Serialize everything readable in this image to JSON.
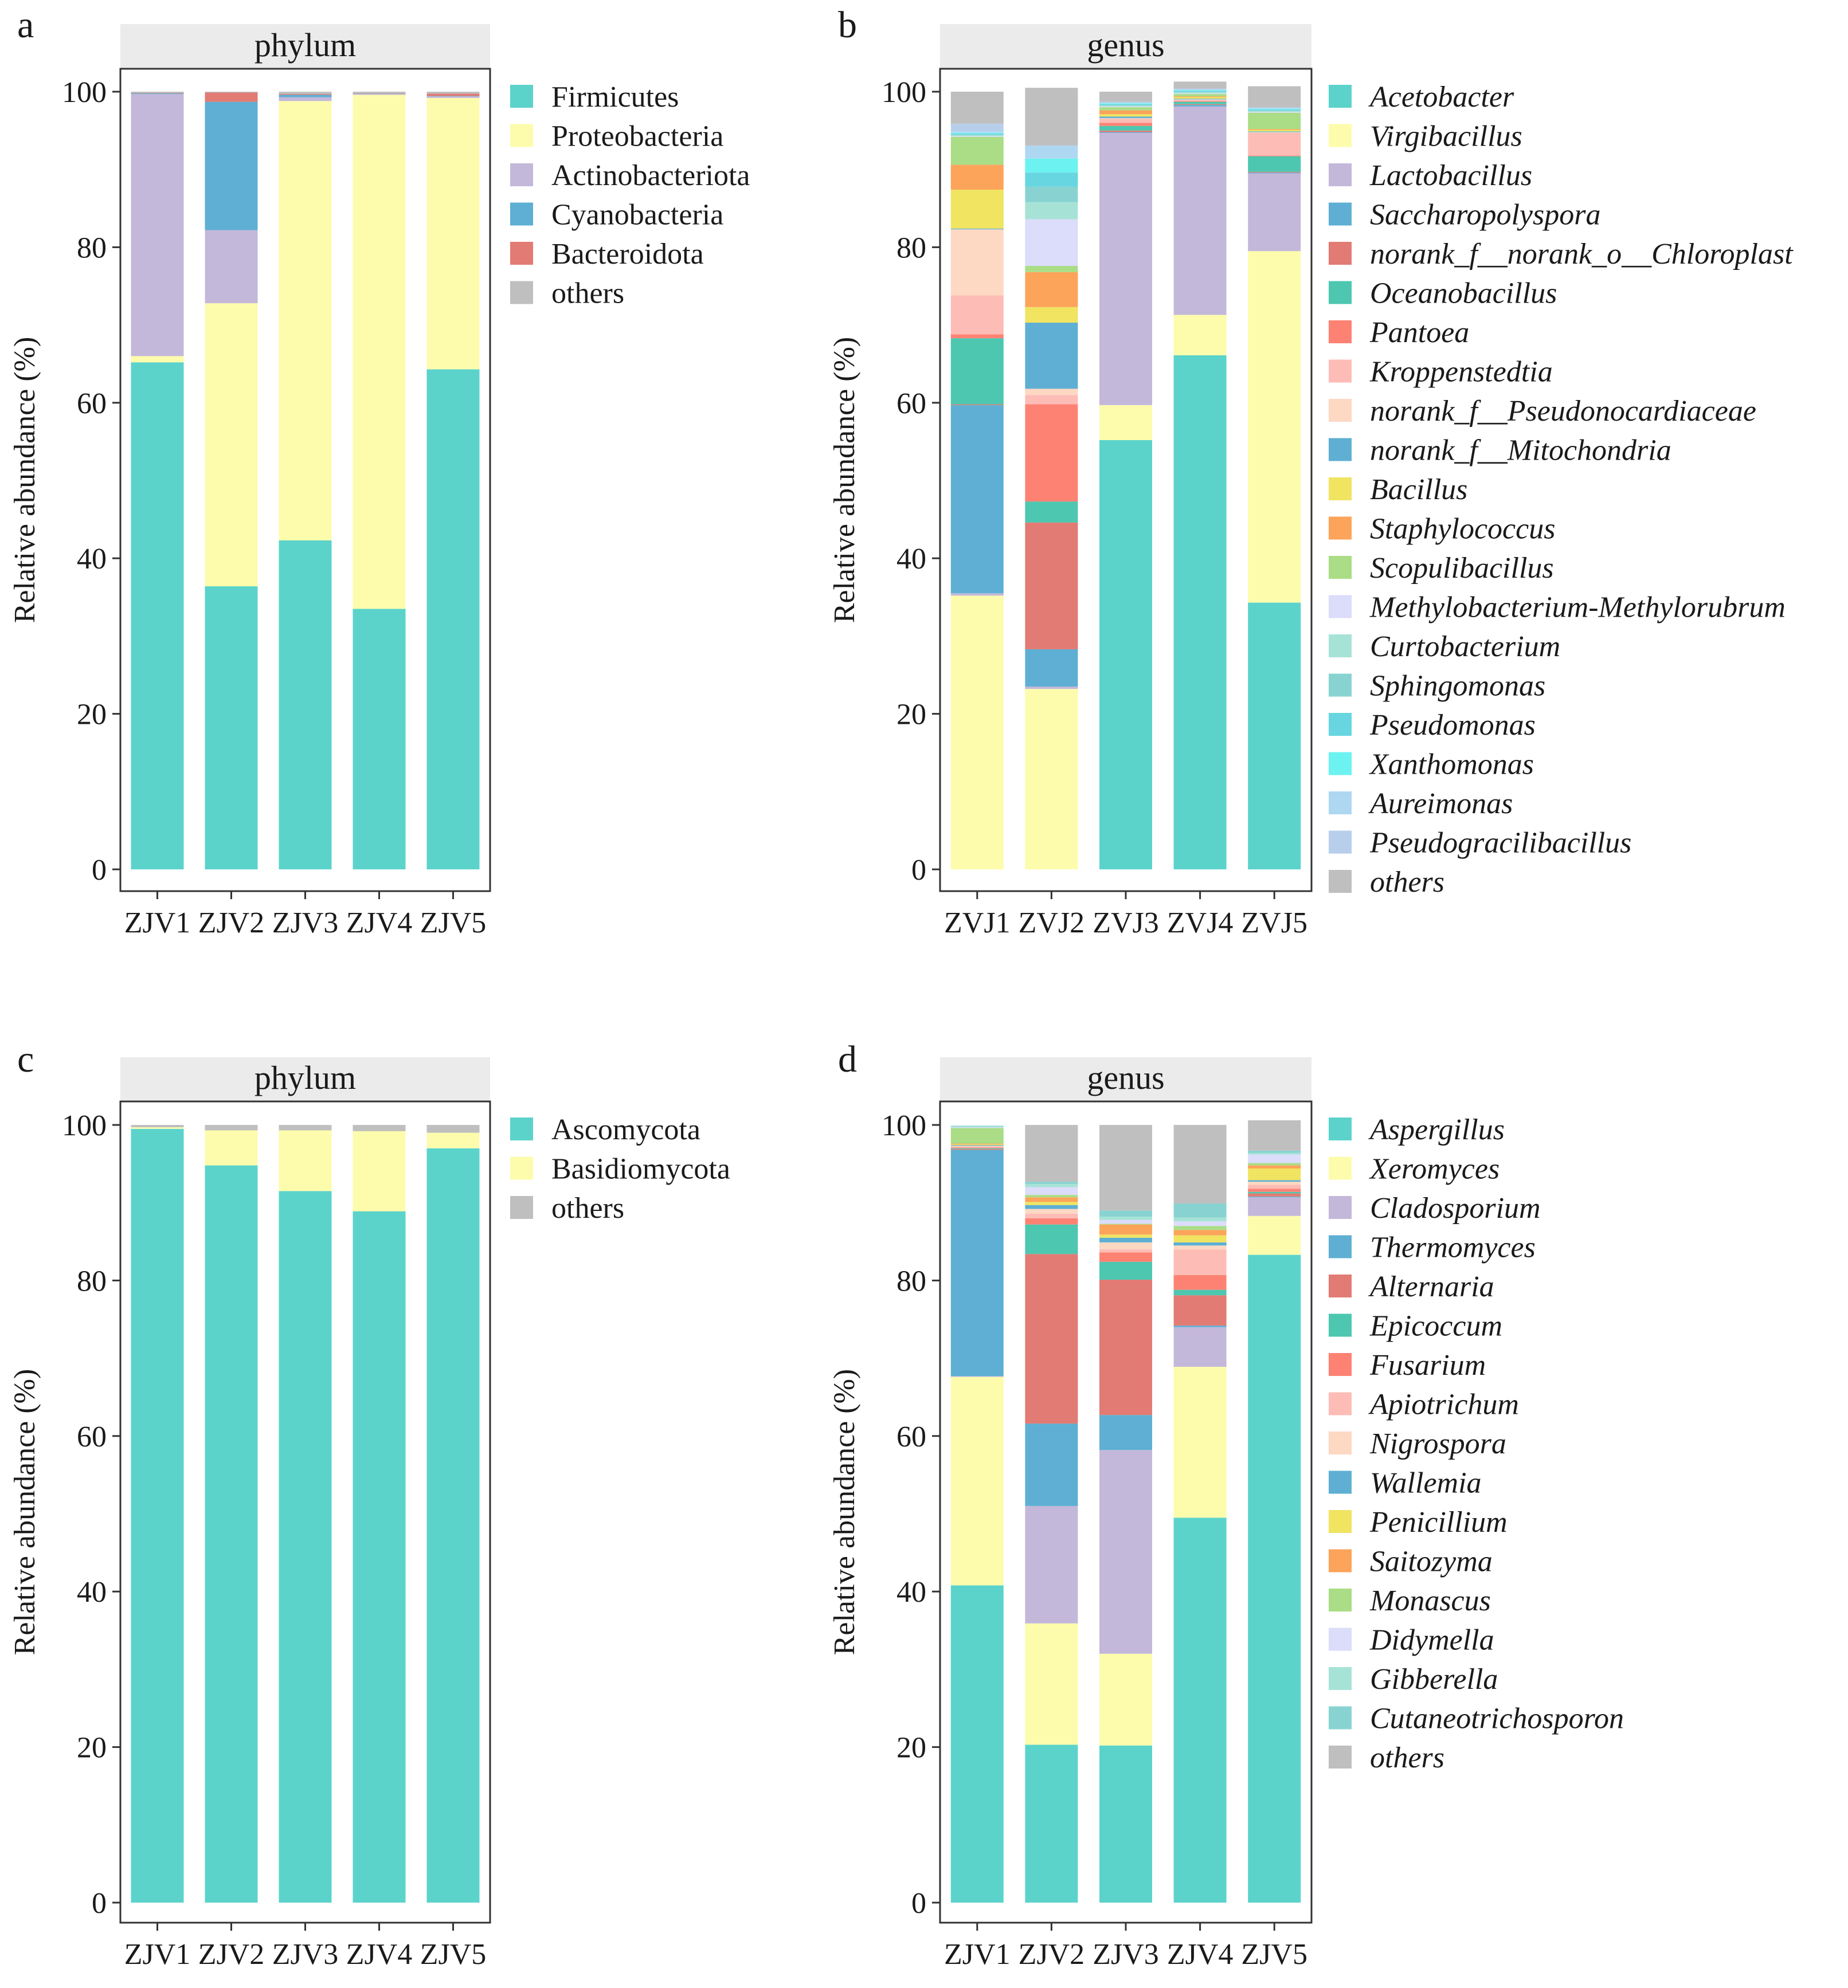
{
  "chart_data": [
    {
      "panel": "a",
      "type": "bar",
      "stacked": true,
      "title": "phylum",
      "xlabel": "",
      "ylabel": "Relative abundance (%)",
      "ylim": [
        0,
        100
      ],
      "yticks": [
        0,
        20,
        40,
        60,
        80,
        100
      ],
      "categories": [
        "ZJV1",
        "ZJV2",
        "ZJV3",
        "ZJV4",
        "ZJV5"
      ],
      "legend_italic": false,
      "legend_position": "right",
      "series": [
        {
          "name": "Firmicutes",
          "color": "#5bd3cb",
          "values": [
            65.2,
            36.4,
            42.3,
            33.5,
            64.3
          ]
        },
        {
          "name": "Proteobacteria",
          "color": "#fdfcac",
          "values": [
            0.8,
            36.4,
            56.5,
            66.1,
            34.9
          ]
        },
        {
          "name": "Actinobacteriota",
          "color": "#c3b8da",
          "values": [
            33.7,
            9.4,
            0.5,
            0.1,
            0.2
          ]
        },
        {
          "name": "Cyanobacteria",
          "color": "#5eafd3",
          "values": [
            0.1,
            16.5,
            0.3,
            0.05,
            0.05
          ]
        },
        {
          "name": "Bacteroidota",
          "color": "#e27b73",
          "values": [
            0.05,
            1.2,
            0.1,
            0.05,
            0.3
          ]
        },
        {
          "name": "others",
          "color": "#bfbfbf",
          "values": [
            0.15,
            0.1,
            0.3,
            0.2,
            0.25
          ]
        }
      ]
    },
    {
      "panel": "b",
      "type": "bar",
      "stacked": true,
      "title": "genus",
      "xlabel": "",
      "ylabel": "Relative abundance (%)",
      "ylim": [
        0,
        100
      ],
      "yticks": [
        0,
        20,
        40,
        60,
        80,
        100
      ],
      "categories": [
        "ZVJ1",
        "ZVJ2",
        "ZVJ3",
        "ZVJ4",
        "ZVJ5"
      ],
      "legend_italic": true,
      "legend_position": "right",
      "series": [
        {
          "name": "Acetobacter",
          "color": "#5bd3cb",
          "values": [
            0,
            0,
            55.2,
            66.1,
            34.3
          ]
        },
        {
          "name": "Virgibacillus",
          "color": "#fdfcac",
          "values": [
            35.2,
            23.2,
            4.5,
            5.2,
            45.2
          ]
        },
        {
          "name": "Lactobacillus",
          "color": "#c3b8da",
          "values": [
            0.3,
            0.3,
            35.0,
            26.8,
            10.0
          ]
        },
        {
          "name": "Saccharopolyspora",
          "color": "#5eafd3",
          "values": [
            24.2,
            4.8,
            0.1,
            0.2,
            0.1
          ]
        },
        {
          "name": "norank_f__norank_o__Chloroplast",
          "color": "#e27b73",
          "values": [
            0.1,
            16.3,
            0.2,
            0.1,
            0.1
          ]
        },
        {
          "name": "Oceanobacillus",
          "color": "#4dc7b0",
          "values": [
            8.5,
            2.7,
            0.6,
            0.3,
            2.0
          ]
        },
        {
          "name": "Pantoea",
          "color": "#fd8273",
          "values": [
            0.5,
            12.5,
            0.4,
            0.1,
            0.1
          ]
        },
        {
          "name": "Kroppenstedtia",
          "color": "#fdbcb6",
          "values": [
            5.0,
            1.2,
            0.5,
            0.1,
            2.9
          ]
        },
        {
          "name": "norank_f__Pseudonocardiaceae",
          "color": "#fdd8c3",
          "values": [
            8.5,
            0.8,
            0.1,
            0.1,
            0.1
          ]
        },
        {
          "name": "norank_f__Mitochondria",
          "color": "#5eafd3",
          "values": [
            0.1,
            8.5,
            0.2,
            0.1,
            0.1
          ]
        },
        {
          "name": "Bacillus",
          "color": "#f0e461",
          "values": [
            5.0,
            2.0,
            0.3,
            0.2,
            0.2
          ]
        },
        {
          "name": "Staphylococcus",
          "color": "#fda45b",
          "values": [
            3.2,
            4.5,
            0.5,
            0.1,
            0.1
          ]
        },
        {
          "name": "Scopulibacillus",
          "color": "#aadd86",
          "values": [
            3.6,
            0.8,
            0.4,
            0.3,
            2.1
          ]
        },
        {
          "name": "Methylobacterium-Methylorubrum",
          "color": "#dcdcfb",
          "values": [
            0.1,
            6.0,
            0.1,
            0.1,
            0.1
          ]
        },
        {
          "name": "Curtobacterium",
          "color": "#a6e3d6",
          "values": [
            0.1,
            2.2,
            0.1,
            0.1,
            0.1
          ]
        },
        {
          "name": "Sphingomonas",
          "color": "#88d3d2",
          "values": [
            0.1,
            2.0,
            0.1,
            0.1,
            0.1
          ]
        },
        {
          "name": "Pseudomonas",
          "color": "#67d6e0",
          "values": [
            0.1,
            1.8,
            0.1,
            0.1,
            0.1
          ]
        },
        {
          "name": "Xanthomonas",
          "color": "#6cf2f0",
          "values": [
            0.1,
            1.8,
            0.1,
            0.1,
            0.1
          ]
        },
        {
          "name": "Aureimonas",
          "color": "#aed8f2",
          "values": [
            0.2,
            1.6,
            0.1,
            0.1,
            0.1
          ]
        },
        {
          "name": "Pseudogracilibacillus",
          "color": "#b7cfea",
          "values": [
            1.0,
            0.1,
            0.1,
            0.1,
            0.1
          ]
        },
        {
          "name": "others",
          "color": "#bfbfbf",
          "values": [
            4.1,
            7.4,
            1.3,
            0.9,
            2.7
          ]
        }
      ]
    },
    {
      "panel": "c",
      "type": "bar",
      "stacked": true,
      "title": "phylum",
      "xlabel": "",
      "ylabel": "Relative abundance (%)",
      "ylim": [
        0,
        100
      ],
      "yticks": [
        0,
        20,
        40,
        60,
        80,
        100
      ],
      "categories": [
        "ZJV1",
        "ZJV2",
        "ZJV3",
        "ZJV4",
        "ZJV5"
      ],
      "legend_italic": false,
      "legend_position": "right",
      "series": [
        {
          "name": "Ascomycota",
          "color": "#5bd3cb",
          "values": [
            99.5,
            94.8,
            91.5,
            88.9,
            97.0
          ]
        },
        {
          "name": "Basidiomycota",
          "color": "#fdfcac",
          "values": [
            0.2,
            4.5,
            7.8,
            10.3,
            2.0
          ]
        },
        {
          "name": "others",
          "color": "#bfbfbf",
          "values": [
            0.3,
            0.7,
            0.7,
            0.8,
            1.0
          ]
        }
      ]
    },
    {
      "panel": "d",
      "type": "bar",
      "stacked": true,
      "title": "genus",
      "xlabel": "",
      "ylabel": "Relative abundance (%)",
      "ylim": [
        0,
        100
      ],
      "yticks": [
        0,
        20,
        40,
        60,
        80,
        100
      ],
      "categories": [
        "ZJV1",
        "ZJV2",
        "ZJV3",
        "ZJV4",
        "ZJV5"
      ],
      "legend_italic": true,
      "legend_position": "right",
      "series": [
        {
          "name": "Aspergillus",
          "color": "#5bd3cb",
          "values": [
            40.8,
            20.3,
            20.2,
            49.5,
            83.3
          ]
        },
        {
          "name": "Xeromyces",
          "color": "#fdfcac",
          "values": [
            26.8,
            15.6,
            11.8,
            19.4,
            5.0
          ]
        },
        {
          "name": "Cladosporium",
          "color": "#c3b8da",
          "values": [
            0.1,
            15.1,
            26.2,
            5.1,
            2.4
          ]
        },
        {
          "name": "Thermomyces",
          "color": "#5eafd3",
          "values": [
            29.1,
            10.6,
            4.5,
            0.2,
            0.1
          ]
        },
        {
          "name": "Alternaria",
          "color": "#e27b73",
          "values": [
            0.1,
            21.8,
            17.4,
            3.9,
            0.4
          ]
        },
        {
          "name": "Epicoccum",
          "color": "#4dc7b0",
          "values": [
            0.1,
            3.8,
            2.3,
            0.7,
            0.2
          ]
        },
        {
          "name": "Fusarium",
          "color": "#fd8273",
          "values": [
            0.1,
            0.8,
            1.2,
            1.9,
            0.4
          ]
        },
        {
          "name": "Apiotrichum",
          "color": "#fdbcb6",
          "values": [
            0.1,
            0.6,
            0.4,
            3.3,
            0.5
          ]
        },
        {
          "name": "Nigrospora",
          "color": "#fdd8c3",
          "values": [
            0.1,
            0.6,
            0.9,
            0.5,
            0.4
          ]
        },
        {
          "name": "Wallemia",
          "color": "#5eafd3",
          "values": [
            0.1,
            0.5,
            0.6,
            0.4,
            0.2
          ]
        },
        {
          "name": "Penicillium",
          "color": "#f0e461",
          "values": [
            0.1,
            0.4,
            0.4,
            0.9,
            1.5
          ]
        },
        {
          "name": "Saitozyma",
          "color": "#fda45b",
          "values": [
            0.1,
            0.6,
            1.3,
            0.7,
            0.4
          ]
        },
        {
          "name": "Monascus",
          "color": "#aadd86",
          "values": [
            2.0,
            0.3,
            0.1,
            0.5,
            0.3
          ]
        },
        {
          "name": "Didymella",
          "color": "#dcdcfb",
          "values": [
            0.1,
            1.0,
            0.5,
            0.6,
            1.1
          ]
        },
        {
          "name": "Gibberella",
          "color": "#a6e3d6",
          "values": [
            0.1,
            0.4,
            0.4,
            0.5,
            0.2
          ]
        },
        {
          "name": "Cutaneotrichosporon",
          "color": "#88d3d2",
          "values": [
            0.1,
            0.3,
            0.8,
            1.8,
            0.3
          ]
        },
        {
          "name": "others",
          "color": "#bfbfbf",
          "values": [
            0.0,
            7.3,
            11.0,
            10.1,
            3.9
          ]
        }
      ]
    }
  ],
  "panel_letters": [
    "a",
    "b",
    "c",
    "d"
  ]
}
